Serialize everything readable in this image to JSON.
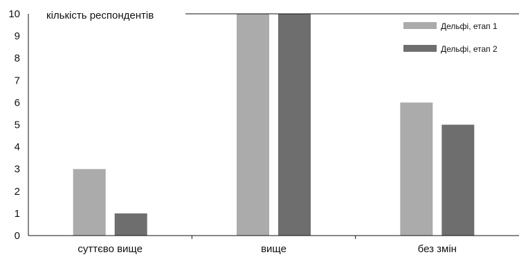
{
  "chart_data": {
    "type": "bar",
    "categories": [
      "суттєво вище",
      "вище",
      "без змін"
    ],
    "series": [
      {
        "name": "Дельфі, етап 1",
        "values": [
          3,
          10,
          6
        ],
        "color": "#ababab"
      },
      {
        "name": "Дельфі, етап 2",
        "values": [
          1,
          10,
          5
        ],
        "color": "#6e6e6e"
      }
    ],
    "ylabel": "кількість респондентів",
    "xlabel": "",
    "ylim": [
      0,
      10
    ],
    "yticks": [
      0,
      1,
      2,
      3,
      4,
      5,
      6,
      7,
      8,
      9,
      10
    ],
    "grid": false,
    "legend": "top-right"
  }
}
